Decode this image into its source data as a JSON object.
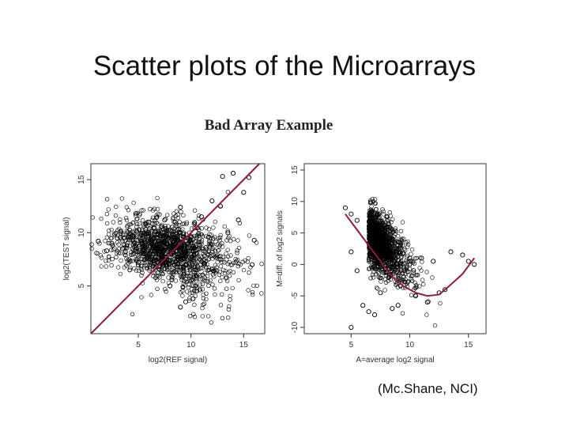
{
  "slide": {
    "title": "Scatter plots of the Microarrays",
    "figure_title": "Bad Array Example",
    "credit": "(Mc.Shane, NCI)"
  },
  "colors": {
    "points": "#000000",
    "fit_line": "#8b1a4a",
    "axis": "#333333"
  },
  "chart_data": [
    {
      "type": "scatter",
      "title": "",
      "xlabel": "log2(REF signal)",
      "ylabel": "log2(TEST signal)",
      "xlim": [
        0.5,
        17
      ],
      "ylim": [
        0.5,
        16.5
      ],
      "xticks": [
        5,
        10,
        15
      ],
      "yticks": [
        5,
        10,
        15
      ],
      "grid": false,
      "reference_line": {
        "type": "identity",
        "points": [
          [
            0.5,
            0.5
          ],
          [
            16.5,
            16.5
          ]
        ]
      },
      "series": [
        {
          "points": [
            [
              1.2,
              9.2
            ],
            [
              2.0,
              8.3
            ],
            [
              3.0,
              9.5
            ],
            [
              4.2,
              6.5
            ],
            [
              5.0,
              7.2
            ],
            [
              6.0,
              11.0
            ],
            [
              7.5,
              11.2
            ],
            [
              8.5,
              11.0
            ],
            [
              9.0,
              12.4
            ],
            [
              9.5,
              3.5
            ],
            [
              10.5,
              4.5
            ],
            [
              11.0,
              11.5
            ],
            [
              12.0,
              13.0
            ],
            [
              12.8,
              12.5
            ],
            [
              13.0,
              15.3
            ],
            [
              14.0,
              15.6
            ],
            [
              15.0,
              13.8
            ],
            [
              15.5,
              15.2
            ],
            [
              16.0,
              9.3
            ],
            [
              15.8,
              7.0
            ],
            [
              9.0,
              3.0
            ],
            [
              10.2,
              3.8
            ],
            [
              14.5,
              11.2
            ],
            [
              13.5,
              10.0
            ],
            [
              6.5,
              10.5
            ],
            [
              7.0,
              7.5
            ],
            [
              8.0,
              5.0
            ],
            [
              3.5,
              8.5
            ],
            [
              2.5,
              9.0
            ]
          ],
          "cluster": {
            "x_center": 8.0,
            "y_center": 8.5,
            "x_spread": 3.2,
            "y_spread": 1.4
          }
        }
      ]
    },
    {
      "type": "scatter",
      "title": "",
      "xlabel": "A=average log2 signal",
      "ylabel": "M=diff. of log2 signals",
      "xlim": [
        1,
        16.5
      ],
      "ylim": [
        -11,
        16
      ],
      "xticks": [
        5,
        10,
        15
      ],
      "yticks": [
        -10,
        -5,
        0,
        5,
        10,
        15
      ],
      "grid": false,
      "fit_curve": [
        [
          4.5,
          8.0
        ],
        [
          5.5,
          5.5
        ],
        [
          6.5,
          3.0
        ],
        [
          7.5,
          0.5
        ],
        [
          8.5,
          -2.0
        ],
        [
          9.5,
          -3.5
        ],
        [
          10.5,
          -4.5
        ],
        [
          11.5,
          -5.0
        ],
        [
          12.5,
          -4.8
        ],
        [
          13.5,
          -3.2
        ],
        [
          14.5,
          -1.5
        ],
        [
          15.5,
          1.0
        ]
      ],
      "series": [
        {
          "points": [
            [
              4.5,
              9.0
            ],
            [
              5.0,
              8.0
            ],
            [
              5.5,
              7.0
            ],
            [
              5.0,
              2.0
            ],
            [
              5.5,
              -1.0
            ],
            [
              6.0,
              -6.5
            ],
            [
              6.5,
              -7.5
            ],
            [
              5.0,
              -10.0
            ],
            [
              7.0,
              -8.0
            ],
            [
              7.5,
              6.0
            ],
            [
              8.5,
              4.0
            ],
            [
              9.0,
              3.0
            ],
            [
              10.0,
              1.0
            ],
            [
              11.0,
              1.0
            ],
            [
              12.0,
              0.5
            ],
            [
              13.5,
              2.0
            ],
            [
              14.5,
              1.5
            ],
            [
              15.0,
              0.5
            ],
            [
              15.5,
              0.0
            ],
            [
              12.5,
              -4.5
            ],
            [
              13.0,
              -4.0
            ],
            [
              11.5,
              -6.0
            ],
            [
              10.5,
              -5.0
            ],
            [
              8.5,
              -7.0
            ],
            [
              9.0,
              -6.5
            ],
            [
              7.5,
              -4.5
            ]
          ],
          "cluster": {
            "x_center": 8.0,
            "y_center": -1.0,
            "x_spread": 1.8,
            "y_spread": 3.2
          }
        }
      ]
    }
  ]
}
